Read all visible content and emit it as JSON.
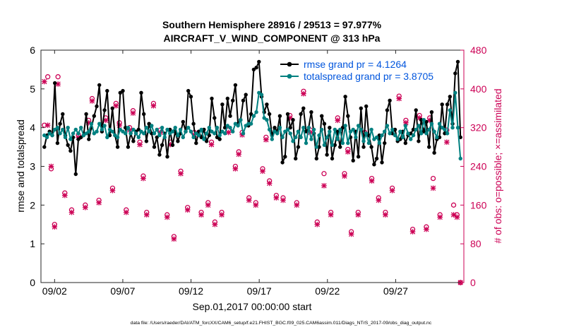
{
  "chart_data": {
    "type": "line",
    "title": "Southern Hemisphere 28916 / 29513 = 97.977%",
    "subtitle": "AIRCRAFT_V_WIND_COMPONENT @ 313 hPa",
    "xlabel": "Sep.01,2017 00:00:00 start",
    "ylabel_left": "rmse and totalspread",
    "ylabel_right": "# of obs: o=possible; ×=assimilated",
    "footer": "data file: /Users/raeder/DAI/ATM_forcXX/CAM6_setup/f.e21.FHIST_BGC.f09_025.CAM6assim.011/Diags_NTrS_2017-09/obs_diag_output.nc",
    "x_range_days": [
      0,
      31
    ],
    "x_ticks": [
      {
        "day": 1,
        "label": "09/02"
      },
      {
        "day": 6,
        "label": "09/07"
      },
      {
        "day": 11,
        "label": "09/12"
      },
      {
        "day": 16,
        "label": "09/17"
      },
      {
        "day": 21,
        "label": "09/22"
      },
      {
        "day": 26,
        "label": "09/27"
      }
    ],
    "ylim_left": [
      0,
      6
    ],
    "yticks_left": [
      "0",
      "1",
      "2",
      "3",
      "4",
      "5",
      "6"
    ],
    "ylim_right": [
      0,
      480
    ],
    "yticks_right": [
      "0",
      "80",
      "160",
      "240",
      "320",
      "400",
      "480"
    ],
    "legend": {
      "position": "top-right"
    },
    "colors": {
      "rmse": "#000000",
      "spread": "#008080",
      "obs": "#cc0055"
    },
    "series": [
      {
        "name": "rmse grand pr = 4.1264",
        "color": "#000000",
        "values": [
          3.5,
          3.8,
          3.9,
          3.8,
          5.15,
          3.6,
          4.1,
          4.35,
          3.8,
          3.55,
          3.4,
          3.75,
          2.8,
          3.7,
          3.75,
          3.8,
          4.35,
          3.7,
          4.0,
          4.3,
          4.55,
          5.1,
          3.9,
          4.45,
          4.95,
          3.8,
          4.5,
          3.8,
          3.5,
          4.9,
          4.95,
          4.0,
          3.5,
          3.85,
          3.65,
          3.9,
          3.95,
          4.9,
          4.35,
          3.65,
          4.1,
          3.85,
          3.5,
          3.75,
          3.3,
          3.55,
          3.85,
          3.25,
          3.95,
          3.55,
          3.9,
          3.65,
          3.85,
          4.15,
          3.9,
          4.95,
          4.8,
          4.1,
          3.6,
          3.9,
          3.75,
          3.95,
          3.65,
          3.8,
          4.75,
          4.25,
          3.75,
          3.7,
          4.6,
          4.0,
          4.75,
          4.3,
          4.7,
          5.1,
          4.1,
          4.2,
          4.7,
          4.85,
          4.05,
          4.35,
          5.5,
          5.55,
          5.7,
          4.8,
          4.4,
          4.6,
          4.35,
          3.8,
          4.0,
          3.9,
          4.3,
          3.1,
          3.25,
          4.35,
          4.0,
          4.2,
          3.2,
          3.5,
          4.35,
          4.5,
          3.9,
          4.0,
          4.4,
          3.85,
          3.2,
          3.5,
          4.3,
          4.1,
          3.3,
          4.0,
          3.2,
          3.55,
          3.9,
          3.5,
          4.0,
          4.8,
          4.3,
          3.75,
          3.15,
          3.9,
          3.25,
          4.5,
          3.5,
          4.55,
          3.8,
          3.5,
          3.05,
          3.2,
          3.8,
          3.1,
          3.6,
          4.45,
          4.7,
          3.85,
          3.95,
          3.65,
          3.7,
          3.9,
          3.6,
          3.8,
          3.85,
          3.95,
          4.45,
          3.65,
          4.2,
          3.9,
          4.15,
          3.5,
          4.4,
          3.35,
          3.7,
          3.75,
          4.6,
          3.85,
          4.6,
          4.8,
          4.1,
          5.4,
          5.7,
          3.75
        ]
      },
      {
        "name": "totalspread grand pr = 3.8705",
        "color": "#008080",
        "values": [
          3.8,
          3.75,
          3.85,
          3.8,
          3.95,
          4.0,
          3.85,
          3.95,
          3.75,
          4.0,
          3.7,
          3.85,
          3.95,
          3.85,
          4.0,
          3.8,
          3.85,
          3.9,
          4.1,
          3.85,
          3.9,
          4.1,
          3.95,
          4.05,
          3.75,
          3.95,
          3.9,
          3.8,
          3.75,
          3.95,
          3.9,
          3.85,
          4.0,
          3.85,
          3.95,
          3.85,
          3.75,
          3.9,
          3.85,
          4.0,
          3.9,
          4.05,
          3.85,
          3.95,
          3.8,
          4.0,
          3.75,
          3.95,
          3.85,
          3.9,
          4.0,
          3.8,
          3.95,
          3.75,
          3.9,
          4.0,
          3.9,
          3.75,
          3.85,
          3.8,
          3.95,
          3.7,
          3.85,
          4.0,
          3.9,
          3.85,
          4.0,
          3.8,
          3.9,
          3.85,
          4.05,
          4.0,
          3.9,
          4.1,
          4.05,
          4.2,
          3.85,
          4.05,
          4.1,
          4.1,
          4.3,
          4.4,
          4.9,
          4.85,
          4.25,
          4.2,
          3.95,
          3.7,
          3.9,
          3.85,
          4.0,
          3.75,
          3.9,
          3.95,
          3.85,
          3.65,
          3.75,
          3.9,
          3.75,
          4.0,
          3.6,
          4.0,
          3.7,
          3.95,
          3.5,
          3.8,
          3.95,
          3.55,
          3.75,
          3.9,
          3.55,
          3.95,
          3.7,
          3.95,
          3.6,
          4.05,
          3.6,
          3.9,
          3.95,
          3.75,
          4.05,
          3.95,
          3.65,
          3.85,
          3.6,
          3.95,
          3.7,
          3.75,
          3.6,
          3.8,
          3.9,
          4.05,
          3.85,
          3.95,
          3.8,
          3.7,
          3.9,
          3.75,
          4.05,
          3.85,
          3.7,
          3.8,
          3.95,
          4.05,
          3.85,
          4.2,
          3.85,
          3.95,
          4.1,
          3.9,
          3.75,
          4.1,
          4.0,
          3.95,
          3.85,
          4.45,
          4.0,
          4.9,
          4.0,
          3.2
        ]
      }
    ],
    "obs_possible": [
      {
        "day": 0.25,
        "value": 325
      },
      {
        "day": 0.5,
        "value": 425
      },
      {
        "day": 0.75,
        "value": 235
      },
      {
        "day": 1.0,
        "value": 120
      },
      {
        "day": 1.25,
        "value": 425
      },
      {
        "day": 1.75,
        "value": 185
      },
      {
        "day": 2.25,
        "value": 150
      },
      {
        "day": 2.75,
        "value": 305
      },
      {
        "day": 3.25,
        "value": 160
      },
      {
        "day": 3.5,
        "value": 335
      },
      {
        "day": 3.75,
        "value": 380
      },
      {
        "day": 4.25,
        "value": 170
      },
      {
        "day": 4.75,
        "value": 340
      },
      {
        "day": 5.25,
        "value": 195
      },
      {
        "day": 5.5,
        "value": 370
      },
      {
        "day": 5.75,
        "value": 330
      },
      {
        "day": 6.25,
        "value": 150
      },
      {
        "day": 6.5,
        "value": 320
      },
      {
        "day": 6.75,
        "value": 355
      },
      {
        "day": 7.25,
        "value": 290
      },
      {
        "day": 7.5,
        "value": 220
      },
      {
        "day": 7.75,
        "value": 145
      },
      {
        "day": 8.25,
        "value": 370
      },
      {
        "day": 8.75,
        "value": 315
      },
      {
        "day": 9.25,
        "value": 140
      },
      {
        "day": 9.5,
        "value": 290
      },
      {
        "day": 9.75,
        "value": 95
      },
      {
        "day": 10.25,
        "value": 230
      },
      {
        "day": 10.75,
        "value": 155
      },
      {
        "day": 11.25,
        "value": 310
      },
      {
        "day": 11.75,
        "value": 145
      },
      {
        "day": 12.25,
        "value": 165
      },
      {
        "day": 12.5,
        "value": 290
      },
      {
        "day": 12.75,
        "value": 125
      },
      {
        "day": 13.25,
        "value": 145
      },
      {
        "day": 13.75,
        "value": 315
      },
      {
        "day": 14.25,
        "value": 240
      },
      {
        "day": 14.5,
        "value": 270
      },
      {
        "day": 14.75,
        "value": 310
      },
      {
        "day": 15.25,
        "value": 175
      },
      {
        "day": 15.75,
        "value": 165
      },
      {
        "day": 16.25,
        "value": 235
      },
      {
        "day": 16.5,
        "value": 300
      },
      {
        "day": 16.75,
        "value": 210
      },
      {
        "day": 17.25,
        "value": 180
      },
      {
        "day": 17.75,
        "value": 175
      },
      {
        "day": 18.25,
        "value": 345
      },
      {
        "day": 18.75,
        "value": 165
      },
      {
        "day": 19.25,
        "value": 395
      },
      {
        "day": 19.75,
        "value": 315
      },
      {
        "day": 20.25,
        "value": 125
      },
      {
        "day": 20.75,
        "value": 225
      },
      {
        "day": 21.25,
        "value": 145
      },
      {
        "day": 21.75,
        "value": 340
      },
      {
        "day": 22.25,
        "value": 225
      },
      {
        "day": 22.5,
        "value": 275
      },
      {
        "day": 22.75,
        "value": 105
      },
      {
        "day": 23.25,
        "value": 145
      },
      {
        "day": 23.75,
        "value": 310
      },
      {
        "day": 24.25,
        "value": 215
      },
      {
        "day": 24.75,
        "value": 175
      },
      {
        "day": 25.25,
        "value": 145
      },
      {
        "day": 25.75,
        "value": 195
      },
      {
        "day": 26.25,
        "value": 385
      },
      {
        "day": 26.75,
        "value": 335
      },
      {
        "day": 27.25,
        "value": 110
      },
      {
        "day": 27.75,
        "value": 345
      },
      {
        "day": 28.25,
        "value": 115
      },
      {
        "day": 28.5,
        "value": 340
      },
      {
        "day": 28.75,
        "value": 215
      },
      {
        "day": 29.25,
        "value": 140
      },
      {
        "day": 29.75,
        "value": 315
      },
      {
        "day": 30.25,
        "value": 160
      },
      {
        "day": 30.5,
        "value": 140
      },
      {
        "day": 30.75,
        "value": 0
      }
    ],
    "obs_assimilated": [
      {
        "day": 0.25,
        "value": 415
      },
      {
        "day": 0.5,
        "value": 325
      },
      {
        "day": 0.75,
        "value": 240
      },
      {
        "day": 1.0,
        "value": 115
      },
      {
        "day": 1.25,
        "value": 410
      },
      {
        "day": 1.75,
        "value": 180
      },
      {
        "day": 2.25,
        "value": 145
      },
      {
        "day": 2.75,
        "value": 300
      },
      {
        "day": 3.25,
        "value": 155
      },
      {
        "day": 3.5,
        "value": 330
      },
      {
        "day": 3.75,
        "value": 375
      },
      {
        "day": 4.25,
        "value": 165
      },
      {
        "day": 4.75,
        "value": 335
      },
      {
        "day": 5.25,
        "value": 190
      },
      {
        "day": 5.5,
        "value": 365
      },
      {
        "day": 5.75,
        "value": 325
      },
      {
        "day": 6.25,
        "value": 145
      },
      {
        "day": 6.5,
        "value": 315
      },
      {
        "day": 6.75,
        "value": 350
      },
      {
        "day": 7.25,
        "value": 285
      },
      {
        "day": 7.5,
        "value": 215
      },
      {
        "day": 7.75,
        "value": 140
      },
      {
        "day": 8.25,
        "value": 365
      },
      {
        "day": 8.75,
        "value": 310
      },
      {
        "day": 9.25,
        "value": 135
      },
      {
        "day": 9.5,
        "value": 285
      },
      {
        "day": 9.75,
        "value": 90
      },
      {
        "day": 10.25,
        "value": 225
      },
      {
        "day": 10.75,
        "value": 150
      },
      {
        "day": 11.25,
        "value": 305
      },
      {
        "day": 11.75,
        "value": 140
      },
      {
        "day": 12.25,
        "value": 160
      },
      {
        "day": 12.5,
        "value": 285
      },
      {
        "day": 12.75,
        "value": 120
      },
      {
        "day": 13.25,
        "value": 140
      },
      {
        "day": 13.75,
        "value": 310
      },
      {
        "day": 14.25,
        "value": 235
      },
      {
        "day": 14.5,
        "value": 265
      },
      {
        "day": 14.75,
        "value": 305
      },
      {
        "day": 15.25,
        "value": 170
      },
      {
        "day": 15.75,
        "value": 160
      },
      {
        "day": 16.25,
        "value": 230
      },
      {
        "day": 16.5,
        "value": 295
      },
      {
        "day": 16.75,
        "value": 205
      },
      {
        "day": 17.25,
        "value": 175
      },
      {
        "day": 17.75,
        "value": 170
      },
      {
        "day": 18.25,
        "value": 340
      },
      {
        "day": 18.75,
        "value": 160
      },
      {
        "day": 19.25,
        "value": 390
      },
      {
        "day": 19.75,
        "value": 310
      },
      {
        "day": 20.25,
        "value": 120
      },
      {
        "day": 20.75,
        "value": 200
      },
      {
        "day": 21.25,
        "value": 140
      },
      {
        "day": 21.75,
        "value": 335
      },
      {
        "day": 22.25,
        "value": 220
      },
      {
        "day": 22.5,
        "value": 270
      },
      {
        "day": 22.75,
        "value": 100
      },
      {
        "day": 23.25,
        "value": 140
      },
      {
        "day": 23.75,
        "value": 305
      },
      {
        "day": 24.25,
        "value": 210
      },
      {
        "day": 24.75,
        "value": 170
      },
      {
        "day": 25.25,
        "value": 140
      },
      {
        "day": 25.75,
        "value": 190
      },
      {
        "day": 26.25,
        "value": 380
      },
      {
        "day": 26.75,
        "value": 330
      },
      {
        "day": 27.25,
        "value": 105
      },
      {
        "day": 27.75,
        "value": 340
      },
      {
        "day": 28.25,
        "value": 110
      },
      {
        "day": 28.5,
        "value": 335
      },
      {
        "day": 28.75,
        "value": 195
      },
      {
        "day": 29.25,
        "value": 135
      },
      {
        "day": 29.75,
        "value": 290
      },
      {
        "day": 30.25,
        "value": 140
      },
      {
        "day": 30.5,
        "value": 135
      },
      {
        "day": 30.75,
        "value": 0
      }
    ]
  }
}
